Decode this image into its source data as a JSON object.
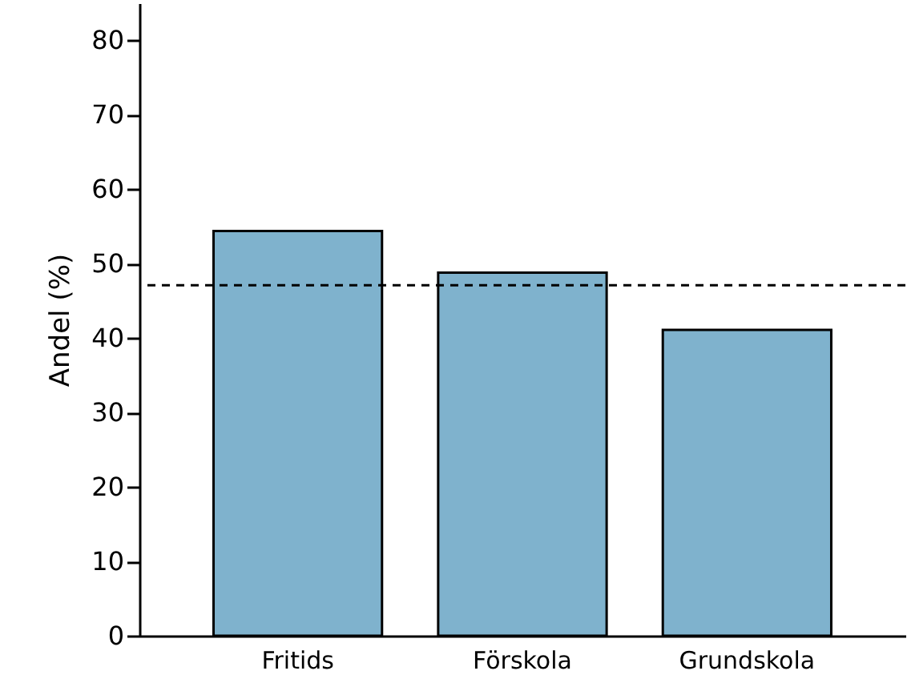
{
  "chart_data": {
    "type": "bar",
    "ylabel": "Andel (%)",
    "categories": [
      "Fritids",
      "Förskola",
      "Grundskola"
    ],
    "values": [
      54.4,
      48.8,
      41.1
    ],
    "color": "#7fb2cd",
    "ylim": [
      0,
      85
    ],
    "yticks": [
      0,
      10,
      20,
      30,
      40,
      50,
      60,
      70,
      80
    ],
    "grid": false,
    "ref_lines": [
      {
        "axis": "y",
        "value": 47.1,
        "line_style": "dashed",
        "color": "#000000"
      }
    ]
  }
}
